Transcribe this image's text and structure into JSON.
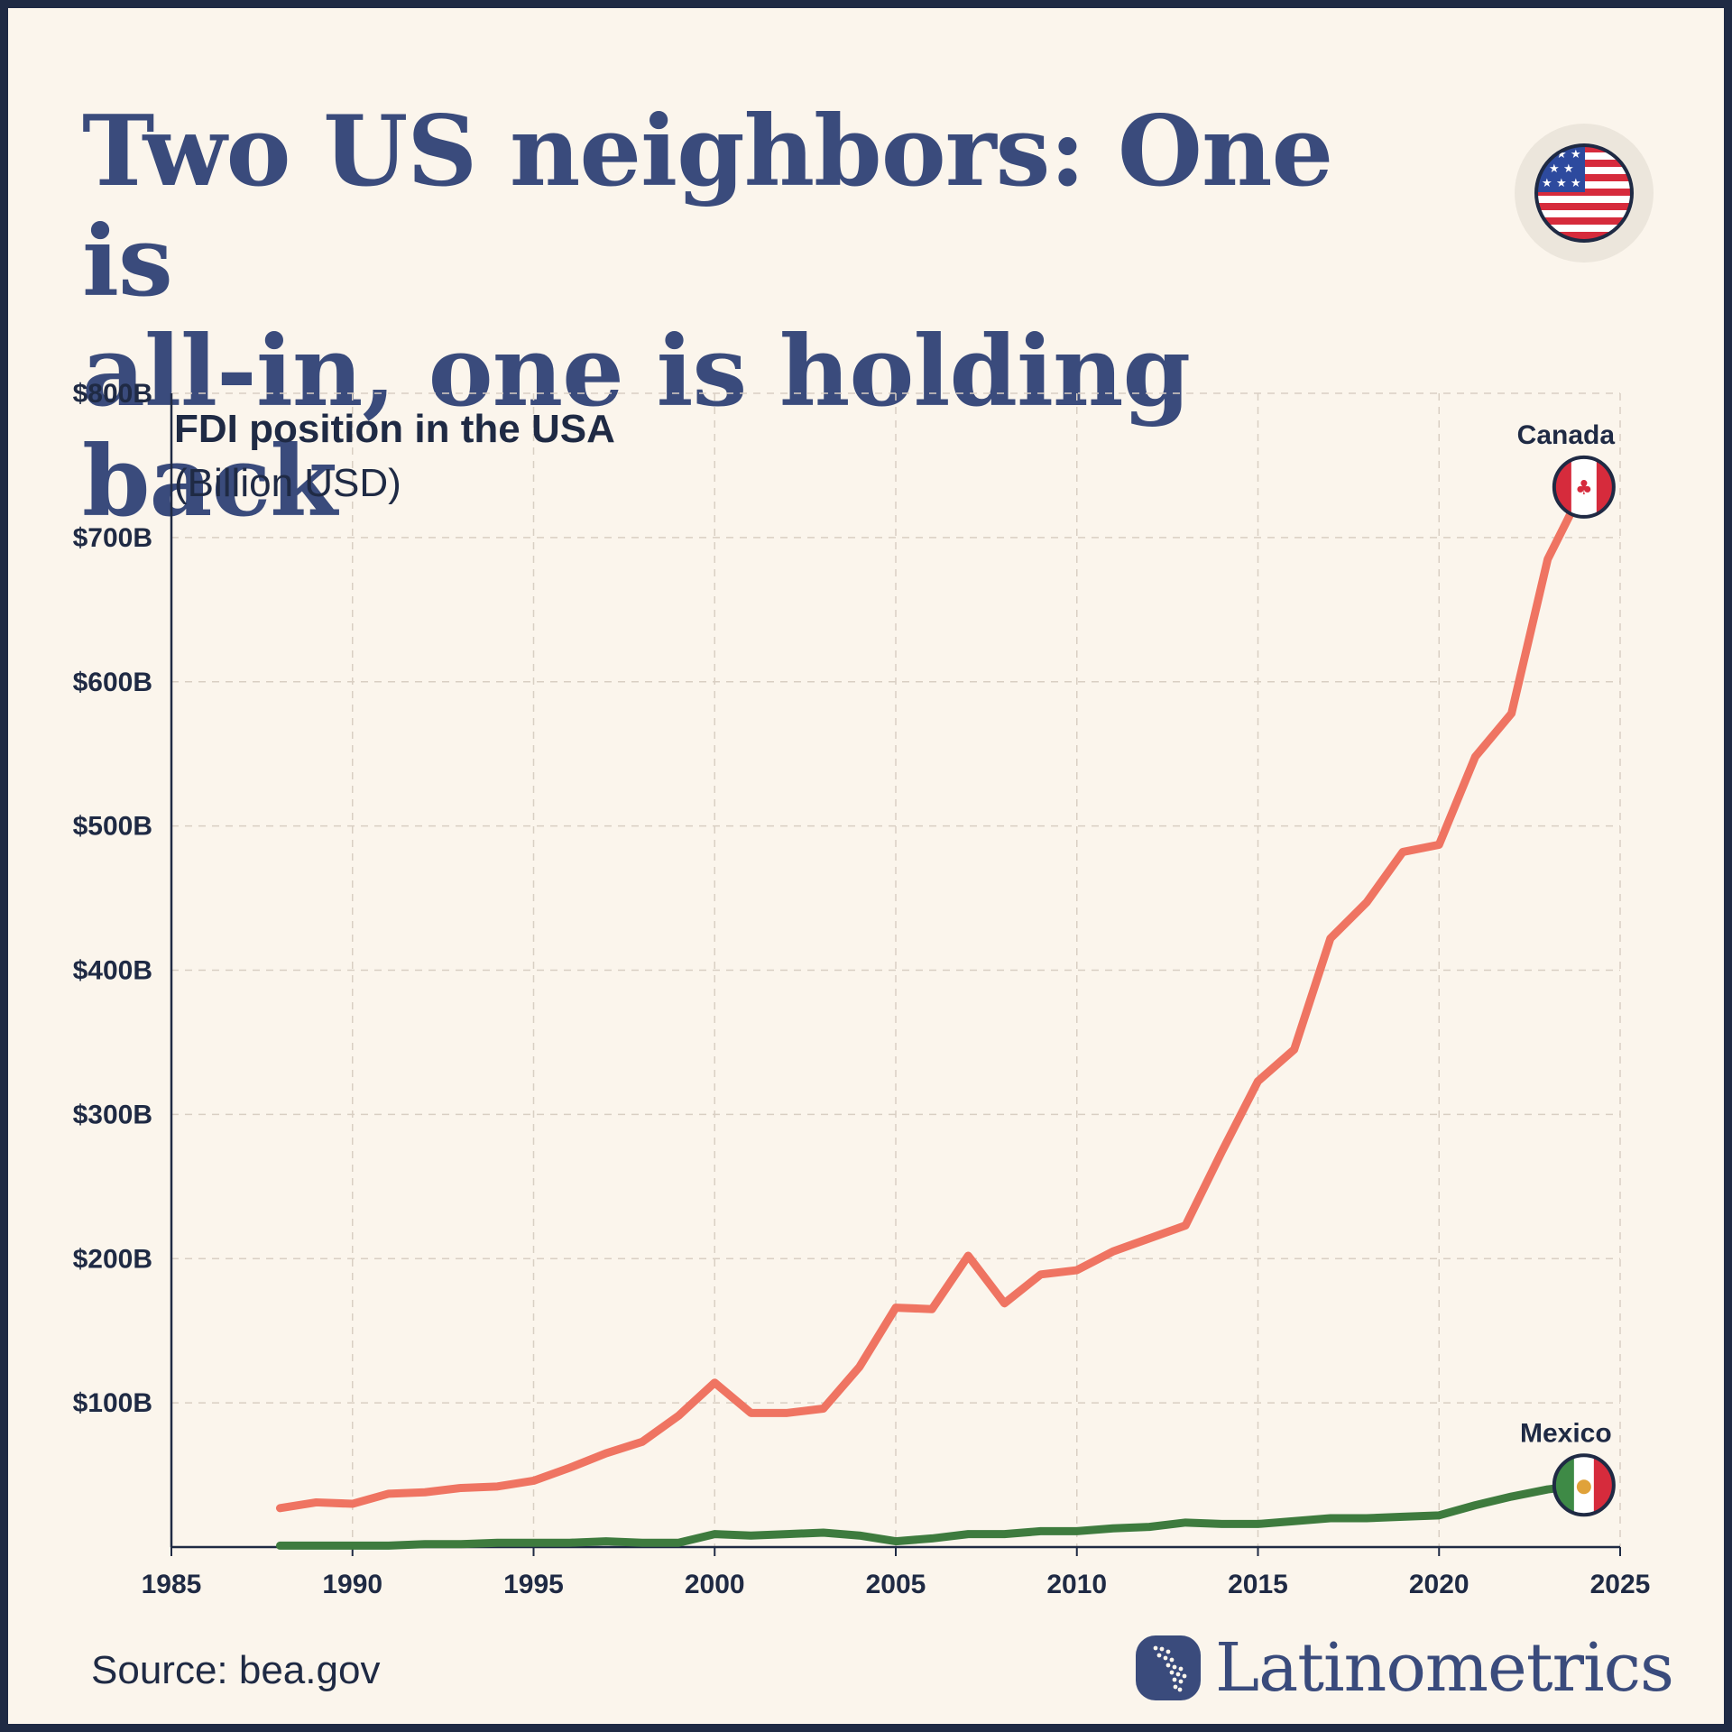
{
  "header": {
    "title_line1": "Two US neighbors: One is",
    "title_line2": "all-in, one is holding back"
  },
  "icons": {
    "header_flag": "us-flag-icon",
    "canada_flag": "canada-flag-icon",
    "mexico_flag": "mexico-flag-icon",
    "brand_logo": "latin-america-map-logo-icon"
  },
  "colors": {
    "canada": "#ef7462",
    "mexico": "#3e7b3e",
    "title": "#3a4b7c",
    "background": "#fbf5ec",
    "frame": "#1f2a44"
  },
  "footer": {
    "source": "Source: bea.gov",
    "brand": "Latinometrics"
  },
  "chart_data": {
    "type": "line",
    "title": "FDI position in the USA",
    "subtitle": "(Billion USD)",
    "xlabel": "",
    "ylabel": "",
    "xlim": [
      1985,
      2025
    ],
    "ylim": [
      0,
      800
    ],
    "x_ticks": [
      1985,
      1990,
      1995,
      2000,
      2005,
      2010,
      2015,
      2020,
      2025
    ],
    "x_tick_labels": [
      "1985",
      "1990",
      "1995",
      "2000",
      "2005",
      "2010",
      "2015",
      "2020",
      "2025"
    ],
    "y_ticks": [
      100,
      200,
      300,
      400,
      500,
      600,
      700,
      800
    ],
    "y_tick_labels": [
      "$100B",
      "$200B",
      "$300B",
      "$400B",
      "$500B",
      "$600B",
      "$700B",
      "$800B"
    ],
    "grid": true,
    "x": [
      1988,
      1989,
      1990,
      1991,
      1992,
      1993,
      1994,
      1995,
      1996,
      1997,
      1998,
      1999,
      2000,
      2001,
      2002,
      2003,
      2004,
      2005,
      2006,
      2007,
      2008,
      2009,
      2010,
      2011,
      2012,
      2013,
      2014,
      2015,
      2016,
      2017,
      2018,
      2019,
      2020,
      2021,
      2022,
      2023,
      2024
    ],
    "series": [
      {
        "name": "Canada",
        "values": [
          27,
          31,
          30,
          37,
          38,
          41,
          42,
          46,
          55,
          65,
          73,
          91,
          114,
          93,
          93,
          96,
          125,
          166,
          165,
          202,
          169,
          189,
          192,
          205,
          214,
          223,
          274,
          323,
          345,
          422,
          447,
          482,
          487,
          548,
          578,
          685,
          735
        ]
      },
      {
        "name": "Mexico",
        "values": [
          1,
          1,
          1,
          1,
          2,
          2,
          3,
          3,
          3,
          4,
          3,
          3,
          9,
          8,
          9,
          10,
          8,
          4,
          6,
          9,
          9,
          11,
          11,
          13,
          14,
          17,
          16,
          16,
          18,
          20,
          20,
          21,
          22,
          29,
          35,
          40,
          43
        ]
      }
    ]
  }
}
